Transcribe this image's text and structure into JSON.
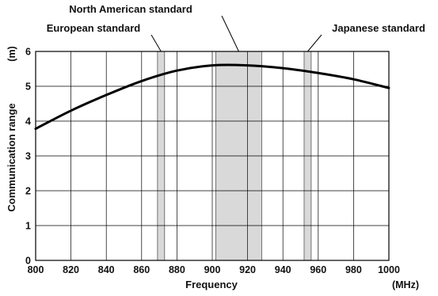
{
  "chart_data": {
    "type": "line",
    "xlabel": "Frequency",
    "x_unit": "(MHz)",
    "ylabel": "Communication range",
    "y_unit": "(m)",
    "xlim": [
      800,
      1000
    ],
    "ylim": [
      0,
      6
    ],
    "xticks": [
      800,
      820,
      840,
      860,
      880,
      900,
      920,
      940,
      960,
      980,
      1000
    ],
    "yticks": [
      0,
      1,
      2,
      3,
      4,
      5,
      6
    ],
    "grid": true,
    "line_color": "#000000",
    "band_color": "#d9d9d9",
    "series": [
      {
        "x": [
          800,
          820,
          840,
          860,
          880,
          900,
          920,
          940,
          960,
          980,
          1000
        ],
        "y": [
          3.78,
          4.3,
          4.75,
          5.15,
          5.45,
          5.6,
          5.6,
          5.52,
          5.38,
          5.2,
          4.95
        ]
      }
    ],
    "bands": [
      {
        "label": "European standard",
        "range": [
          869,
          873
        ]
      },
      {
        "label": "North American standard",
        "range": [
          902,
          928
        ]
      },
      {
        "label": "Japanese standard",
        "range": [
          952,
          956
        ]
      }
    ]
  }
}
